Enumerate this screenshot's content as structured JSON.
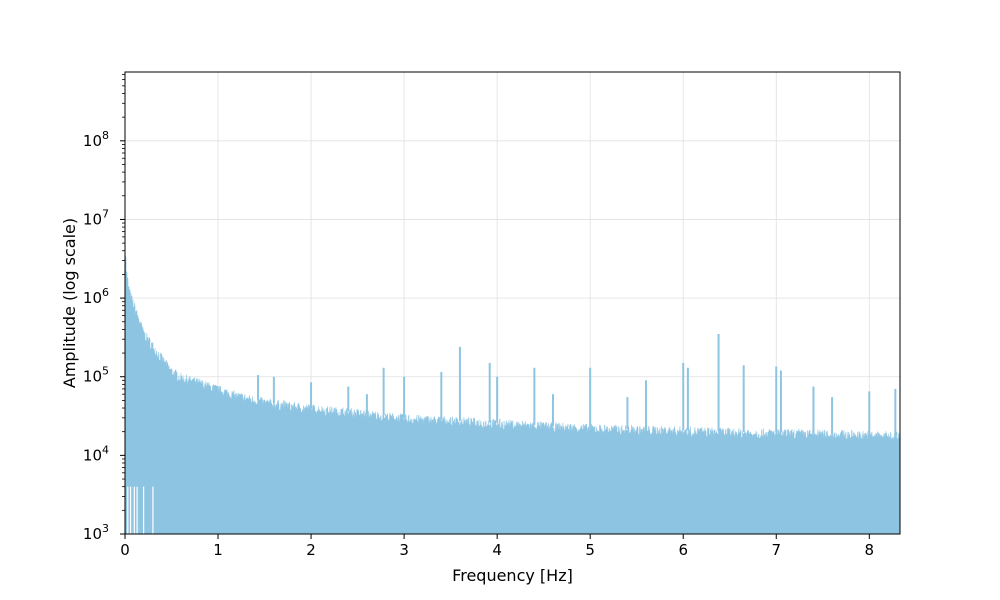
{
  "chart_data": {
    "type": "area",
    "xlabel": "Frequency [Hz]",
    "ylabel": "Amplitude (log scale)",
    "xlim": [
      0,
      8.33
    ],
    "ylim": [
      1000,
      750000000
    ],
    "yscale": "log",
    "grid": true,
    "x_ticks": [
      "0",
      "1",
      "2",
      "3",
      "4",
      "5",
      "6",
      "7",
      "8"
    ],
    "y_ticks": [
      {
        "base": "10",
        "exp": "3"
      },
      {
        "base": "10",
        "exp": "4"
      },
      {
        "base": "10",
        "exp": "5"
      },
      {
        "base": "10",
        "exp": "6"
      },
      {
        "base": "10",
        "exp": "7"
      },
      {
        "base": "10",
        "exp": "8"
      }
    ],
    "series": [
      {
        "color": "#8dc4e2",
        "envelope": [
          [
            0.0,
            4800000
          ],
          [
            0.02,
            2000000
          ],
          [
            0.05,
            1200000
          ],
          [
            0.1,
            800000
          ],
          [
            0.15,
            550000
          ],
          [
            0.2,
            370000
          ],
          [
            0.3,
            250000
          ],
          [
            0.4,
            170000
          ],
          [
            0.5,
            120000
          ],
          [
            0.6,
            100000
          ],
          [
            0.8,
            85000
          ],
          [
            1.0,
            70000
          ],
          [
            1.2,
            58000
          ],
          [
            1.5,
            48000
          ],
          [
            2.0,
            40000
          ],
          [
            2.5,
            35000
          ],
          [
            3.0,
            30000
          ],
          [
            3.5,
            28000
          ],
          [
            4.0,
            26000
          ],
          [
            4.5,
            24000
          ],
          [
            5.0,
            22500
          ],
          [
            5.5,
            21500
          ],
          [
            6.0,
            21000
          ],
          [
            6.5,
            20000
          ],
          [
            7.0,
            19500
          ],
          [
            7.5,
            19000
          ],
          [
            8.0,
            18500
          ],
          [
            8.33,
            18000
          ]
        ],
        "peaks": [
          [
            1.43,
            105000
          ],
          [
            1.6,
            100000
          ],
          [
            2.0,
            85000
          ],
          [
            2.4,
            75000
          ],
          [
            2.6,
            60000
          ],
          [
            2.78,
            130000
          ],
          [
            3.0,
            100000
          ],
          [
            3.4,
            115000
          ],
          [
            3.6,
            240000
          ],
          [
            3.92,
            150000
          ],
          [
            4.0,
            100000
          ],
          [
            4.4,
            130000
          ],
          [
            4.6,
            60000
          ],
          [
            5.0,
            130000
          ],
          [
            5.4,
            55000
          ],
          [
            5.6,
            90000
          ],
          [
            6.0,
            150000
          ],
          [
            6.05,
            130000
          ],
          [
            6.38,
            350000
          ],
          [
            6.65,
            140000
          ],
          [
            7.0,
            135000
          ],
          [
            7.05,
            120000
          ],
          [
            7.4,
            75000
          ],
          [
            7.6,
            55000
          ],
          [
            8.0,
            65000
          ],
          [
            8.28,
            70000
          ]
        ]
      }
    ]
  }
}
